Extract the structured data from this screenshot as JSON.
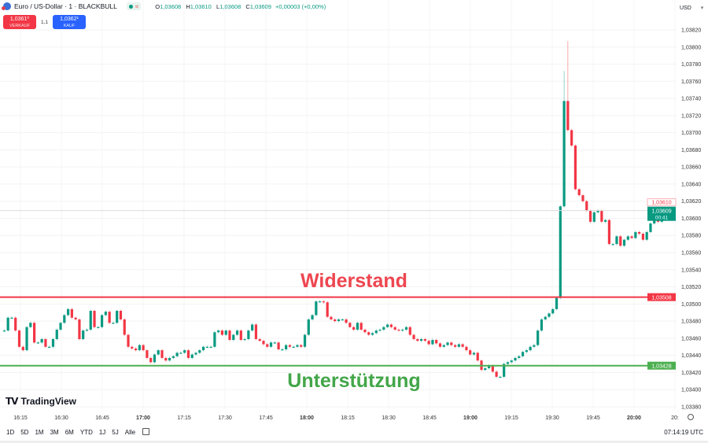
{
  "header": {
    "symbol": "Euro / US-Dollar · 1 · BLACKBULL",
    "market_status": "≈",
    "ohlc": {
      "o_label": "O",
      "o": "1,03608",
      "h_label": "H",
      "h": "1,03610",
      "l_label": "L",
      "l": "1,03608",
      "c_label": "C",
      "c": "1,03609",
      "change": "+0,00003 (+0,00%)"
    }
  },
  "trade": {
    "sell_price": "1,0361⁰",
    "sell_label": "VERKAUF",
    "spread": "1,1",
    "buy_price": "1,0362¹",
    "buy_label": "KAUF"
  },
  "currency": {
    "label": "USD",
    "arrow": "▾"
  },
  "annotations": {
    "resistance": "Widerstand",
    "support": "Unterstützung"
  },
  "logo": {
    "mark": "TV",
    "text": "TradingView"
  },
  "ranges": [
    "1D",
    "5D",
    "1M",
    "3M",
    "6M",
    "YTD",
    "1J",
    "5J",
    "Alle"
  ],
  "clock": "07:14:19 UTC",
  "colors": {
    "up": "#089981",
    "down": "#f23645",
    "resistance": "#f23645",
    "support": "#4caf50"
  },
  "chart_data": {
    "type": "candlestick",
    "yaxis": {
      "ticks": [
        "1,03820",
        "1,03800",
        "1,03780",
        "1,03760",
        "1,03740",
        "1,03720",
        "1,03700",
        "1,03680",
        "1,03660",
        "1,03640",
        "1,03620",
        "1,03600",
        "1,03580",
        "1,03560",
        "1,03540",
        "1,03520",
        "1,03500",
        "1,03480",
        "1,03460",
        "1,03440",
        "1,03420",
        "1,03400",
        "1,03380"
      ],
      "ylim": [
        1.0337,
        1.0383
      ]
    },
    "xaxis": {
      "ticks": [
        {
          "t": "16:15",
          "bold": false
        },
        {
          "t": "16:30",
          "bold": false
        },
        {
          "t": "16:45",
          "bold": false
        },
        {
          "t": "17:00",
          "bold": true
        },
        {
          "t": "17:15",
          "bold": false
        },
        {
          "t": "17:30",
          "bold": false
        },
        {
          "t": "17:45",
          "bold": false
        },
        {
          "t": "18:00",
          "bold": true
        },
        {
          "t": "18:15",
          "bold": false
        },
        {
          "t": "18:30",
          "bold": false
        },
        {
          "t": "18:45",
          "bold": false
        },
        {
          "t": "19:00",
          "bold": true
        },
        {
          "t": "19:15",
          "bold": false
        },
        {
          "t": "19:30",
          "bold": false
        },
        {
          "t": "19:45",
          "bold": false
        },
        {
          "t": "20:00",
          "bold": true
        },
        {
          "t": "20:",
          "bold": false
        }
      ]
    },
    "levels": {
      "resistance": {
        "value": 1.03508,
        "label": "1,03508"
      },
      "support": {
        "value": 1.03428,
        "label": "1,03428"
      }
    },
    "last_price": {
      "value": 1.03609,
      "label": "1,03609",
      "countdown": "00:41",
      "high_label": "1,03610"
    },
    "closes": [
      1.03469,
      1.03484,
      1.03484,
      1.03469,
      1.0345,
      1.03446,
      1.03473,
      1.03478,
      1.03455,
      1.03455,
      1.03459,
      1.0345,
      1.0345,
      1.03459,
      1.0347,
      1.03478,
      1.03487,
      1.03494,
      1.03484,
      1.03482,
      1.03459,
      1.03469,
      1.0347,
      1.03492,
      1.03473,
      1.03473,
      1.03487,
      1.03491,
      1.03478,
      1.03478,
      1.03492,
      1.03482,
      1.03464,
      1.0345,
      1.03448,
      1.03446,
      1.03452,
      1.03446,
      1.03437,
      1.03432,
      1.03441,
      1.03446,
      1.03437,
      1.03434,
      1.03437,
      1.03439,
      1.03443,
      1.03443,
      1.03446,
      1.03437,
      1.03441,
      1.03443,
      1.03446,
      1.0345,
      1.0345,
      1.0345,
      1.03467,
      1.03469,
      1.03464,
      1.03469,
      1.03458,
      1.03464,
      1.03469,
      1.03458,
      1.03459,
      1.03469,
      1.03476,
      1.03459,
      1.03457,
      1.03453,
      1.0345,
      1.03455,
      1.03455,
      1.03447,
      1.03447,
      1.03452,
      1.0345,
      1.0345,
      1.03452,
      1.0345,
      1.03464,
      1.03482,
      1.03487,
      1.03503,
      1.03503,
      1.03502,
      1.03485,
      1.03482,
      1.0348,
      1.03482,
      1.03482,
      1.03478,
      1.03473,
      1.0347,
      1.03478,
      1.0347,
      1.03467,
      1.03464,
      1.03466,
      1.03469,
      1.0347,
      1.03473,
      1.03476,
      1.03473,
      1.0347,
      1.03469,
      1.0347,
      1.03473,
      1.03464,
      1.03459,
      1.03457,
      1.03459,
      1.03457,
      1.03453,
      1.03458,
      1.03454,
      1.0345,
      1.03452,
      1.03455,
      1.03452,
      1.0345,
      1.03453,
      1.0345,
      1.03446,
      1.03441,
      1.03443,
      1.03434,
      1.03423,
      1.03425,
      1.03428,
      1.03421,
      1.03415,
      1.03415,
      1.0343,
      1.03432,
      1.03434,
      1.03437,
      1.03439,
      1.03444,
      1.03446,
      1.0345,
      1.03452,
      1.03469,
      1.03482,
      1.03485,
      1.03489,
      1.03494,
      1.03507,
      1.03614,
      1.03737,
      1.03703,
      1.03685,
      1.03634,
      1.03627,
      1.0362,
      1.03609,
      1.03596,
      1.03607,
      1.03609,
      1.03596,
      1.03598,
      1.0357,
      1.0357,
      1.03579,
      1.03568,
      1.03575,
      1.03579,
      1.03577,
      1.03584,
      1.03582,
      1.03575,
      1.03584,
      1.03594,
      1.03607,
      1.03596,
      1.036,
      1.03605,
      1.03609,
      1.03609
    ],
    "high_overrides": {
      "149": 1.03772,
      "150": 1.03807
    }
  }
}
